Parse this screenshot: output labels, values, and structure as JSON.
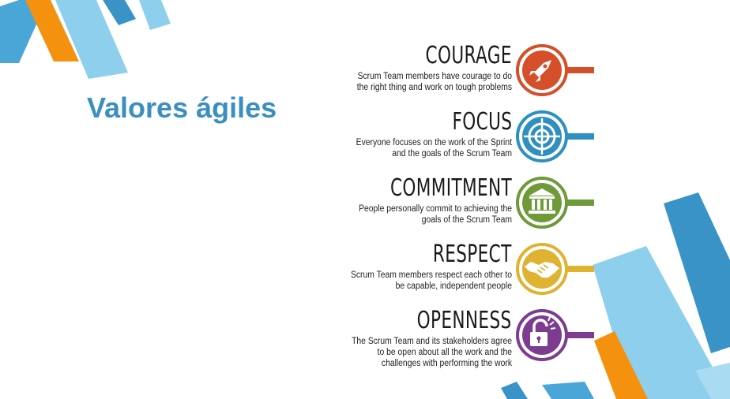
{
  "slide": {
    "title": "Valores ágiles"
  },
  "values": [
    {
      "name": "COURAGE",
      "lines": [
        "Scrum Team members have courage to do",
        "the right thing and work on tough problems"
      ],
      "icon": "rocket-icon",
      "color": "#d44f2a"
    },
    {
      "name": "FOCUS",
      "lines": [
        "Everyone focuses on the work of the Sprint",
        "and the goals of the Scrum Team"
      ],
      "icon": "target-icon",
      "color": "#2e8fc0"
    },
    {
      "name": "COMMITMENT",
      "lines": [
        "People personally commit to achieving the",
        "goals of the Scrum Team"
      ],
      "icon": "bank-icon",
      "color": "#6f9a3a"
    },
    {
      "name": "RESPECT",
      "lines": [
        "Scrum Team members respect each other to",
        "be capable, independent people"
      ],
      "icon": "handshake-icon",
      "color": "#e0b232"
    },
    {
      "name": "OPENNESS",
      "lines": [
        "The Scrum Team and its stakeholders agree",
        "to be open about all the work and the",
        "challenges with performing the work"
      ],
      "icon": "unlock-icon",
      "color": "#7d3c8f"
    }
  ],
  "colors": {
    "title": "#3b8fc0",
    "stripe_light_blue": "#8ecfee",
    "stripe_blue": "#3a93c6",
    "stripe_orange": "#f4920f"
  }
}
